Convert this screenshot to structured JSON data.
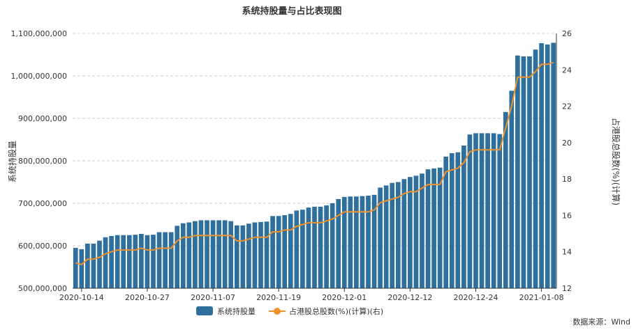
{
  "chart_data": {
    "type": "bar+line",
    "title": "系统持股量与占比表现图",
    "ylabel_left": "系统持股量",
    "ylabel_right": "占港股总股数(%)(计算)",
    "ylim_left": [
      500000000,
      1100000000
    ],
    "ylim_right": [
      12,
      26
    ],
    "left_ticks": [
      "500,000,000",
      "600,000,000",
      "700,000,000",
      "800,000,000",
      "900,000,000",
      "1,000,000,000",
      "1,100,000,000"
    ],
    "right_ticks": [
      "12",
      "14",
      "16",
      "18",
      "20",
      "22",
      "24",
      "26"
    ],
    "x_tick_labels": [
      "2020-10-14",
      "2020-10-27",
      "2020-11-07",
      "2020-11-19",
      "2020-12-01",
      "2020-12-12",
      "2020-12-24",
      "2021-01-08"
    ],
    "x_tick_indices": [
      1,
      12,
      23,
      34,
      45,
      56,
      67,
      78
    ],
    "grid": true,
    "legend_position": "bottom",
    "series": [
      {
        "name": "系统持股量",
        "type": "bar",
        "color": "#2e6f9e",
        "values": [
          595000000,
          592000000,
          605000000,
          605000000,
          612000000,
          620000000,
          623000000,
          625000000,
          625000000,
          625000000,
          626000000,
          628000000,
          625000000,
          626000000,
          632000000,
          632000000,
          632000000,
          647000000,
          653000000,
          655000000,
          658000000,
          660000000,
          660000000,
          660000000,
          660000000,
          660000000,
          658000000,
          648000000,
          648000000,
          652000000,
          655000000,
          656000000,
          657000000,
          670000000,
          670000000,
          672000000,
          675000000,
          683000000,
          685000000,
          690000000,
          692000000,
          692000000,
          695000000,
          700000000,
          710000000,
          715000000,
          716000000,
          716000000,
          717000000,
          718000000,
          720000000,
          737000000,
          742000000,
          748000000,
          750000000,
          757000000,
          762000000,
          765000000,
          770000000,
          780000000,
          782000000,
          784000000,
          810000000,
          818000000,
          820000000,
          836000000,
          862000000,
          865000000,
          865000000,
          865000000,
          865000000,
          863000000,
          915000000,
          965000000,
          1048000000,
          1046000000,
          1046000000,
          1062000000,
          1077000000,
          1074000000,
          1078000000
        ]
      },
      {
        "name": "占港股总股数(%)(计算)(右)",
        "type": "line",
        "color": "#f0922b",
        "values": [
          13.4,
          13.3,
          13.6,
          13.6,
          13.7,
          13.9,
          14.0,
          14.1,
          14.1,
          14.1,
          14.1,
          14.2,
          14.1,
          14.1,
          14.2,
          14.2,
          14.2,
          14.6,
          14.8,
          14.8,
          14.9,
          14.9,
          14.9,
          14.9,
          14.9,
          14.9,
          14.9,
          14.6,
          14.6,
          14.7,
          14.8,
          14.8,
          14.8,
          15.1,
          15.1,
          15.2,
          15.2,
          15.4,
          15.5,
          15.6,
          15.6,
          15.6,
          15.7,
          15.8,
          16.0,
          16.2,
          16.2,
          16.2,
          16.2,
          16.2,
          16.3,
          16.7,
          16.8,
          16.9,
          17.0,
          17.2,
          17.3,
          17.3,
          17.5,
          17.7,
          17.7,
          17.7,
          18.4,
          18.5,
          18.6,
          18.9,
          19.5,
          19.6,
          19.6,
          19.6,
          19.6,
          19.6,
          20.8,
          22.0,
          23.6,
          23.6,
          23.6,
          23.9,
          24.3,
          24.3,
          24.4
        ]
      }
    ]
  },
  "legend": {
    "bar_label": "系统持股量",
    "line_label": "占港股总股数(%)(计算)(右)"
  },
  "source": "数据来源：Wind"
}
